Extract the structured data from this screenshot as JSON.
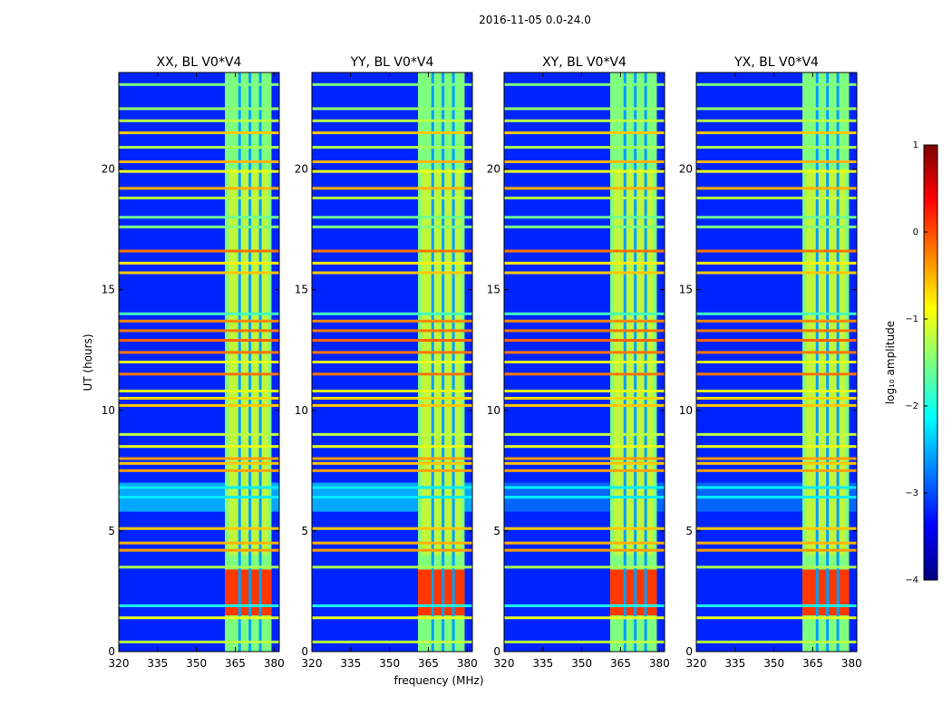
{
  "chart_data": {
    "type": "heatmap",
    "title": "2016-11-05 0.0-24.0",
    "xlabel": "frequency (MHz)",
    "ylabel": "UT (hours)",
    "xlim": [
      320,
      382
    ],
    "ylim": [
      0,
      24
    ],
    "x_ticks": [
      "320",
      "335",
      "350",
      "365",
      "380"
    ],
    "x_tick_values": [
      320,
      335,
      350,
      365,
      380
    ],
    "y_ticks": [
      "0",
      "5",
      "10",
      "15",
      "20"
    ],
    "y_tick_values": [
      0,
      5,
      10,
      15,
      20
    ],
    "panels": [
      {
        "title": "XX, BL V0*V4",
        "polarization": "XX"
      },
      {
        "title": "YY, BL V0*V4",
        "polarization": "YY"
      },
      {
        "title": "XY, BL V0*V4",
        "polarization": "XY"
      },
      {
        "title": "YX, BL V0*V4",
        "polarization": "YX"
      }
    ],
    "colorbar": {
      "label": "log₁₀ amplitude",
      "range": [
        -4,
        1
      ],
      "ticks": [
        "1",
        "0",
        "−1",
        "−2",
        "−3",
        "−4"
      ],
      "tick_values": [
        1,
        0,
        -1,
        -2,
        -3,
        -4
      ],
      "colormap": "jet",
      "colors": [
        "#00007f",
        "#0000ff",
        "#007fff",
        "#00ffff",
        "#7fff7f",
        "#ffff00",
        "#ff7f00",
        "#ff0000",
        "#7f0000"
      ]
    },
    "signal_band_mhz": [
      361,
      379
    ],
    "signal_band_channels_mhz": [
      364.5,
      368.5,
      372.5,
      376.5
    ],
    "background_level": -3.2,
    "band_level": -1.5,
    "strong_band_ut": [
      1.5,
      3.4
    ],
    "strong_band_level": 0.1,
    "rfi_lines": [
      {
        "ut": 0.4,
        "level": -1.2
      },
      {
        "ut": 1.4,
        "level": -1.0
      },
      {
        "ut": 1.9,
        "level": -2.0
      },
      {
        "ut": 3.5,
        "level": -1.3
      },
      {
        "ut": 4.2,
        "level": -0.4
      },
      {
        "ut": 4.5,
        "level": -0.5
      },
      {
        "ut": 5.1,
        "level": -0.6
      },
      {
        "ut": 6.4,
        "level": -2.2
      },
      {
        "ut": 6.8,
        "level": -2.2
      },
      {
        "ut": 7.5,
        "level": -0.4
      },
      {
        "ut": 7.8,
        "level": -0.6
      },
      {
        "ut": 8.0,
        "level": -0.4
      },
      {
        "ut": 8.5,
        "level": -1.0
      },
      {
        "ut": 9.0,
        "level": -1.2
      },
      {
        "ut": 10.2,
        "level": -0.6
      },
      {
        "ut": 10.5,
        "level": -0.7
      },
      {
        "ut": 10.8,
        "level": -1.0
      },
      {
        "ut": 11.5,
        "level": -0.2
      },
      {
        "ut": 12.0,
        "level": -1.0
      },
      {
        "ut": 12.4,
        "level": -0.2
      },
      {
        "ut": 12.9,
        "level": -0.1
      },
      {
        "ut": 13.3,
        "level": -0.2
      },
      {
        "ut": 13.7,
        "level": -0.3
      },
      {
        "ut": 14.0,
        "level": -1.8
      },
      {
        "ut": 15.7,
        "level": -0.6
      },
      {
        "ut": 16.1,
        "level": -0.8
      },
      {
        "ut": 16.6,
        "level": -0.2
      },
      {
        "ut": 17.6,
        "level": -1.5
      },
      {
        "ut": 18.0,
        "level": -1.6
      },
      {
        "ut": 18.8,
        "level": -1.2
      },
      {
        "ut": 19.2,
        "level": -0.5
      },
      {
        "ut": 19.9,
        "level": -1.0
      },
      {
        "ut": 20.3,
        "level": -0.5
      },
      {
        "ut": 20.9,
        "level": -1.3
      },
      {
        "ut": 21.5,
        "level": -0.6
      },
      {
        "ut": 22.0,
        "level": -1.2
      },
      {
        "ut": 22.5,
        "level": -1.4
      },
      {
        "ut": 23.5,
        "level": -1.5
      }
    ],
    "cyan_haze_ut": [
      5.8,
      7.0
    ],
    "cyan_haze_level": -2.1
  }
}
